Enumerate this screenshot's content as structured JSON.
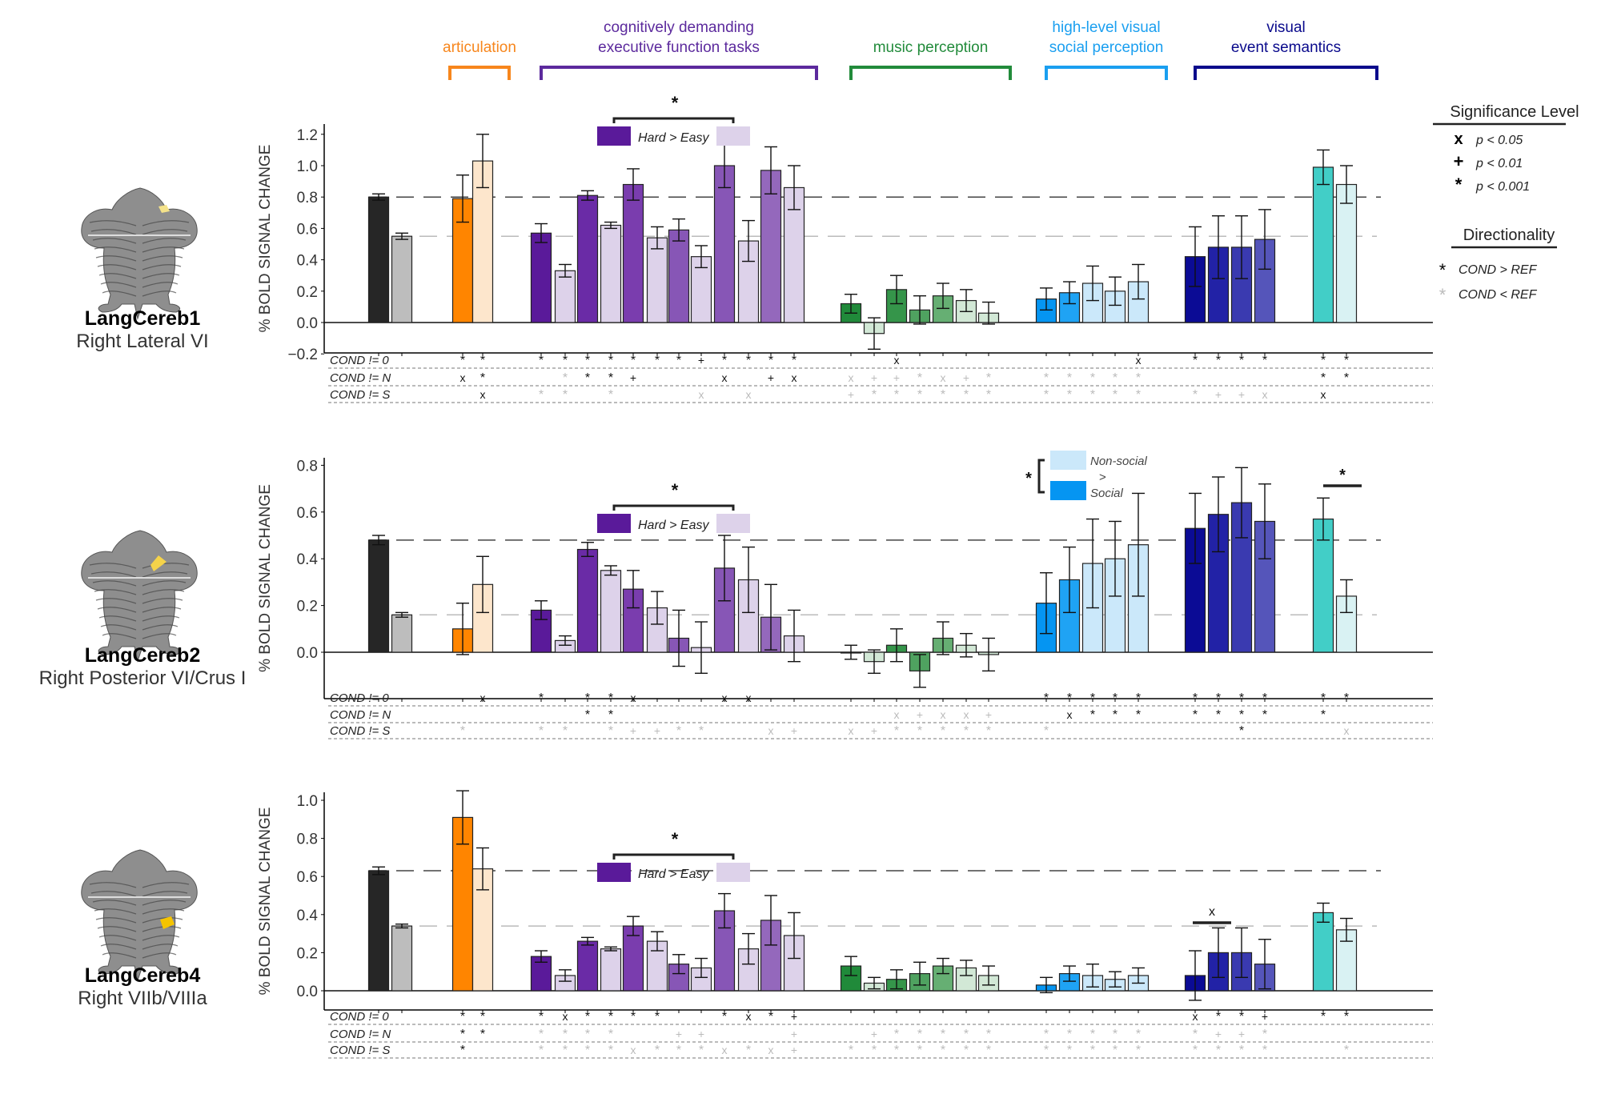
{
  "figure": {
    "ylabel": "% BOLD SIGNAL CHANGE",
    "groups": [
      {
        "id": "articulation",
        "label_lines": [
          "articulation"
        ],
        "color": "#F7861C"
      },
      {
        "id": "exec",
        "label_lines": [
          "cognitively demanding",
          "executive function tasks"
        ],
        "color": "#5C2A9D"
      },
      {
        "id": "music",
        "label_lines": [
          "music perception"
        ],
        "color": "#228B3B"
      },
      {
        "id": "social",
        "label_lines": [
          "high-level visual",
          "social perception"
        ],
        "color": "#1A9FF0"
      },
      {
        "id": "events",
        "label_lines": [
          "visual",
          "event semantics"
        ],
        "color": "#0A0A8C"
      }
    ],
    "legend": {
      "significance_title": "Significance Level",
      "significance_items": [
        {
          "symbol": "x",
          "label": "p < 0.05"
        },
        {
          "symbol": "+",
          "label": "p < 0.01"
        },
        {
          "symbol": "*",
          "label": "p < 0.001"
        }
      ],
      "direction_title": "Directionality",
      "direction_items": [
        {
          "symbol": "*",
          "color": "#000000",
          "label": "COND > REF"
        },
        {
          "symbol": "*",
          "color": "#BBBBBB",
          "label": "COND < REF"
        }
      ]
    },
    "sig_row_labels": [
      "COND != 0",
      "COND != N",
      "COND != S"
    ],
    "hard_easy_label": "Hard > Easy",
    "hard_easy_star": "*",
    "social_legend": {
      "top": "Non-social",
      "mid": ">",
      "bottom": "Social",
      "star": "*"
    }
  },
  "colors": {
    "lang_s": "#262626",
    "lang_n": "#BDBDBD",
    "artic_h": "#FF8500",
    "artic_e": "#FDE6CC",
    "exec_1": "#5A1A9A",
    "exec_2": "#6A2BA6",
    "exec_3": "#7A3DAE",
    "exec_4": "#8756B6",
    "exec_5": "#9468BC",
    "easy": "#DDD2EA",
    "mus_1": "#208A3A",
    "mus_2": "#35954A",
    "mus_3": "#4FA260",
    "mus_4": "#66AF73",
    "mus_light": "#D2E8D6",
    "soc_1": "#0595F2",
    "soc_2": "#1FA3F4",
    "soc_light": "#CBE8FA",
    "ev_1": "#0B0B95",
    "ev_2": "#2222A6",
    "ev_3": "#3A3AB0",
    "ev_4": "#5555BA",
    "teal": "#42CEC7",
    "teal_light": "#D9F2F3"
  },
  "chart_data": [
    {
      "type": "bar",
      "roi": "LangCereb1",
      "region": "Right Lateral VI",
      "ylabel": "% BOLD SIGNAL CHANGE",
      "ylim": [
        -0.25,
        1.25
      ],
      "yticks": [
        "-0.2",
        "0.0",
        "0.2",
        "0.4",
        "0.6",
        "0.8",
        "1.0",
        "1.2"
      ],
      "ref_lines": {
        "S": 0.8,
        "N": 0.55
      },
      "bars": [
        {
          "c": "lang_s",
          "v": 0.8,
          "e": 0.02
        },
        {
          "c": "lang_n",
          "v": 0.55,
          "e": 0.02
        },
        {
          "c": "artic_h",
          "v": 0.79,
          "e": 0.15
        },
        {
          "c": "artic_e",
          "v": 1.03,
          "e": 0.17
        },
        {
          "c": "exec_1",
          "v": 0.57,
          "e": 0.06
        },
        {
          "c": "easy",
          "v": 0.33,
          "e": 0.04
        },
        {
          "c": "exec_2",
          "v": 0.81,
          "e": 0.03
        },
        {
          "c": "easy",
          "v": 0.62,
          "e": 0.02
        },
        {
          "c": "exec_3",
          "v": 0.88,
          "e": 0.1
        },
        {
          "c": "easy",
          "v": 0.54,
          "e": 0.07
        },
        {
          "c": "exec_4",
          "v": 0.59,
          "e": 0.07
        },
        {
          "c": "easy",
          "v": 0.42,
          "e": 0.07
        },
        {
          "c": "exec_4",
          "v": 1.0,
          "e": 0.14
        },
        {
          "c": "easy",
          "v": 0.52,
          "e": 0.13
        },
        {
          "c": "exec_5",
          "v": 0.97,
          "e": 0.15
        },
        {
          "c": "easy",
          "v": 0.86,
          "e": 0.14
        },
        {
          "c": "mus_1",
          "v": 0.12,
          "e": 0.06
        },
        {
          "c": "mus_light",
          "v": -0.07,
          "e": 0.1
        },
        {
          "c": "mus_2",
          "v": 0.21,
          "e": 0.09
        },
        {
          "c": "mus_3",
          "v": 0.08,
          "e": 0.09
        },
        {
          "c": "mus_4",
          "v": 0.17,
          "e": 0.08
        },
        {
          "c": "mus_light",
          "v": 0.14,
          "e": 0.07
        },
        {
          "c": "mus_light",
          "v": 0.06,
          "e": 0.07
        },
        {
          "c": "soc_1",
          "v": 0.15,
          "e": 0.07
        },
        {
          "c": "soc_2",
          "v": 0.19,
          "e": 0.07
        },
        {
          "c": "soc_light",
          "v": 0.25,
          "e": 0.11
        },
        {
          "c": "soc_light",
          "v": 0.2,
          "e": 0.09
        },
        {
          "c": "soc_light",
          "v": 0.26,
          "e": 0.11
        },
        {
          "c": "ev_1",
          "v": 0.42,
          "e": 0.19
        },
        {
          "c": "ev_2",
          "v": 0.48,
          "e": 0.2
        },
        {
          "c": "ev_3",
          "v": 0.48,
          "e": 0.2
        },
        {
          "c": "ev_4",
          "v": 0.53,
          "e": 0.19
        },
        {
          "c": "teal",
          "v": 0.99,
          "e": 0.11
        },
        {
          "c": "teal_light",
          "v": 0.88,
          "e": 0.12
        }
      ],
      "sig": [
        [
          "",
          "",
          "*",
          "*",
          "*",
          "*",
          "*",
          "*",
          "*",
          "*",
          "*",
          "+",
          "*",
          "*",
          "*",
          "*",
          "",
          "",
          "x",
          "",
          "",
          "",
          "",
          "",
          "",
          "",
          "",
          "x",
          "*",
          "*",
          "*",
          "*",
          "*",
          "*"
        ],
        [
          "",
          "",
          "x",
          "*",
          "",
          "g*",
          "*",
          "*",
          "+",
          "",
          "",
          "",
          "x",
          "",
          "+",
          "x",
          "gx",
          "g+",
          "g+",
          "g*",
          "gx",
          "g+",
          "g*",
          "g*",
          "g*",
          "g*",
          "g*",
          "g*",
          "",
          "",
          "",
          "",
          "*",
          "*"
        ],
        [
          "",
          "",
          "",
          "x",
          "g*",
          "g*",
          "",
          "g*",
          "",
          "",
          "",
          "gx",
          "",
          "gx",
          "",
          "",
          "g+",
          "g*",
          "g*",
          "g*",
          "g*",
          "g*",
          "g*",
          "g*",
          "g*",
          "g*",
          "g*",
          "g*",
          "g*",
          "g+",
          "g+",
          "gx",
          "x",
          ""
        ]
      ],
      "hard_easy": true,
      "social_contrast": false,
      "teal_contrast": null,
      "event_contrast": null
    },
    {
      "type": "bar",
      "roi": "LangCereb2",
      "region": "Right Posterior VI/Crus I",
      "ylabel": "% BOLD SIGNAL CHANGE",
      "ylim": [
        -0.2,
        0.82
      ],
      "yticks": [
        "0.0",
        "0.2",
        "0.4",
        "0.6",
        "0.8"
      ],
      "ref_lines": {
        "S": 0.48,
        "N": 0.16
      },
      "bars": [
        {
          "c": "lang_s",
          "v": 0.48,
          "e": 0.02
        },
        {
          "c": "lang_n",
          "v": 0.16,
          "e": 0.01
        },
        {
          "c": "artic_h",
          "v": 0.1,
          "e": 0.11
        },
        {
          "c": "artic_e",
          "v": 0.29,
          "e": 0.12
        },
        {
          "c": "exec_1",
          "v": 0.18,
          "e": 0.04
        },
        {
          "c": "easy",
          "v": 0.05,
          "e": 0.02
        },
        {
          "c": "exec_2",
          "v": 0.44,
          "e": 0.03
        },
        {
          "c": "easy",
          "v": 0.35,
          "e": 0.02
        },
        {
          "c": "exec_3",
          "v": 0.27,
          "e": 0.08
        },
        {
          "c": "easy",
          "v": 0.19,
          "e": 0.07
        },
        {
          "c": "exec_4",
          "v": 0.06,
          "e": 0.12
        },
        {
          "c": "easy",
          "v": 0.02,
          "e": 0.11
        },
        {
          "c": "exec_4",
          "v": 0.36,
          "e": 0.14
        },
        {
          "c": "easy",
          "v": 0.31,
          "e": 0.14
        },
        {
          "c": "exec_5",
          "v": 0.15,
          "e": 0.14
        },
        {
          "c": "easy",
          "v": 0.07,
          "e": 0.11
        },
        {
          "c": "mus_1",
          "v": 0.0,
          "e": 0.03
        },
        {
          "c": "mus_light",
          "v": -0.04,
          "e": 0.05
        },
        {
          "c": "mus_2",
          "v": 0.03,
          "e": 0.07
        },
        {
          "c": "mus_3",
          "v": -0.08,
          "e": 0.07
        },
        {
          "c": "mus_4",
          "v": 0.06,
          "e": 0.07
        },
        {
          "c": "mus_light",
          "v": 0.03,
          "e": 0.05
        },
        {
          "c": "mus_light",
          "v": -0.01,
          "e": 0.07
        },
        {
          "c": "soc_1",
          "v": 0.21,
          "e": 0.13
        },
        {
          "c": "soc_2",
          "v": 0.31,
          "e": 0.14
        },
        {
          "c": "soc_light",
          "v": 0.38,
          "e": 0.19
        },
        {
          "c": "soc_light",
          "v": 0.4,
          "e": 0.16
        },
        {
          "c": "soc_light",
          "v": 0.46,
          "e": 0.22
        },
        {
          "c": "ev_1",
          "v": 0.53,
          "e": 0.15
        },
        {
          "c": "ev_2",
          "v": 0.59,
          "e": 0.16
        },
        {
          "c": "ev_3",
          "v": 0.64,
          "e": 0.15
        },
        {
          "c": "ev_4",
          "v": 0.56,
          "e": 0.16
        },
        {
          "c": "teal",
          "v": 0.57,
          "e": 0.09
        },
        {
          "c": "teal_light",
          "v": 0.24,
          "e": 0.07
        }
      ],
      "sig": [
        [
          "",
          "",
          "",
          "x",
          "*",
          "",
          "*",
          "*",
          "x",
          "",
          "",
          "",
          "x",
          "x",
          "",
          "",
          "",
          "",
          "",
          "",
          "",
          "",
          "",
          "*",
          "*",
          "*",
          "*",
          "*",
          "*",
          "*",
          "*",
          "*",
          "*",
          "*"
        ],
        [
          "",
          "",
          "",
          "",
          "",
          "",
          "*",
          "*",
          "",
          "",
          "",
          "",
          "",
          "",
          "",
          "",
          "",
          "",
          "gx",
          "g+",
          "gx",
          "gx",
          "g+",
          "",
          "x",
          "*",
          "*",
          "*",
          "*",
          "*",
          "*",
          "*",
          "*",
          ""
        ],
        [
          "",
          "",
          "g*",
          "",
          "g*",
          "g*",
          "",
          "g*",
          "g+",
          "g+",
          "g*",
          "g*",
          "",
          "",
          "gx",
          "g+",
          "gx",
          "g+",
          "g*",
          "g*",
          "g*",
          "g*",
          "g*",
          "g*",
          "",
          "",
          "",
          "",
          "",
          "",
          "*",
          "",
          "",
          "gx"
        ]
      ],
      "hard_easy": true,
      "social_contrast": true,
      "teal_contrast": "*",
      "event_contrast": null
    },
    {
      "type": "bar",
      "roi": "LangCereb4",
      "region": "Right VIIb/VIIIa",
      "ylabel": "% BOLD SIGNAL CHANGE",
      "ylim": [
        -0.1,
        1.1
      ],
      "yticks": [
        "0.0",
        "0.2",
        "0.4",
        "0.6",
        "0.8",
        "1.0"
      ],
      "ref_lines": {
        "S": 0.63,
        "N": 0.34
      },
      "bars": [
        {
          "c": "lang_s",
          "v": 0.63,
          "e": 0.02
        },
        {
          "c": "lang_n",
          "v": 0.34,
          "e": 0.01
        },
        {
          "c": "artic_h",
          "v": 0.91,
          "e": 0.14
        },
        {
          "c": "artic_e",
          "v": 0.64,
          "e": 0.11
        },
        {
          "c": "exec_1",
          "v": 0.18,
          "e": 0.03
        },
        {
          "c": "easy",
          "v": 0.08,
          "e": 0.03
        },
        {
          "c": "exec_2",
          "v": 0.26,
          "e": 0.02
        },
        {
          "c": "easy",
          "v": 0.22,
          "e": 0.01
        },
        {
          "c": "exec_3",
          "v": 0.34,
          "e": 0.05
        },
        {
          "c": "easy",
          "v": 0.26,
          "e": 0.05
        },
        {
          "c": "exec_4",
          "v": 0.14,
          "e": 0.05
        },
        {
          "c": "easy",
          "v": 0.12,
          "e": 0.05
        },
        {
          "c": "exec_4",
          "v": 0.42,
          "e": 0.09
        },
        {
          "c": "easy",
          "v": 0.22,
          "e": 0.08
        },
        {
          "c": "exec_5",
          "v": 0.37,
          "e": 0.13
        },
        {
          "c": "easy",
          "v": 0.29,
          "e": 0.12
        },
        {
          "c": "mus_1",
          "v": 0.13,
          "e": 0.05
        },
        {
          "c": "mus_light",
          "v": 0.04,
          "e": 0.03
        },
        {
          "c": "mus_2",
          "v": 0.06,
          "e": 0.05
        },
        {
          "c": "mus_3",
          "v": 0.09,
          "e": 0.06
        },
        {
          "c": "mus_4",
          "v": 0.13,
          "e": 0.04
        },
        {
          "c": "mus_light",
          "v": 0.12,
          "e": 0.04
        },
        {
          "c": "mus_light",
          "v": 0.08,
          "e": 0.05
        },
        {
          "c": "soc_1",
          "v": 0.03,
          "e": 0.04
        },
        {
          "c": "soc_2",
          "v": 0.09,
          "e": 0.04
        },
        {
          "c": "soc_light",
          "v": 0.08,
          "e": 0.06
        },
        {
          "c": "soc_light",
          "v": 0.06,
          "e": 0.04
        },
        {
          "c": "soc_light",
          "v": 0.08,
          "e": 0.04
        },
        {
          "c": "ev_1",
          "v": 0.08,
          "e": 0.13
        },
        {
          "c": "ev_2",
          "v": 0.2,
          "e": 0.13
        },
        {
          "c": "ev_3",
          "v": 0.2,
          "e": 0.13
        },
        {
          "c": "ev_4",
          "v": 0.14,
          "e": 0.13
        },
        {
          "c": "teal",
          "v": 0.41,
          "e": 0.05
        },
        {
          "c": "teal_light",
          "v": 0.32,
          "e": 0.06
        }
      ],
      "sig": [
        [
          "",
          "",
          "*",
          "*",
          "*",
          "x",
          "*",
          "*",
          "*",
          "*",
          "",
          "",
          "*",
          "x",
          "*",
          "+",
          "",
          "",
          "",
          "",
          "",
          "",
          "",
          "",
          "",
          "",
          "",
          "",
          "x",
          "*",
          "*",
          "+",
          "*",
          "*"
        ],
        [
          "",
          "",
          "*",
          "*",
          "g*",
          "g*",
          "g*",
          "g*",
          "",
          "",
          "g+",
          "g+",
          "",
          "",
          "",
          "g+",
          "",
          "g+",
          "g*",
          "g*",
          "g*",
          "g*",
          "g*",
          "g*",
          "g*",
          "g*",
          "g*",
          "g*",
          "g*",
          "g+",
          "g+",
          "g*",
          "",
          ""
        ],
        [
          "",
          "",
          "*",
          "",
          "g*",
          "g*",
          "g*",
          "g*",
          "gx",
          "g*",
          "g*",
          "g*",
          "gx",
          "g*",
          "gx",
          "g+",
          "g*",
          "g*",
          "g*",
          "g*",
          "g*",
          "g*",
          "g*",
          "g*",
          "g*",
          "g*",
          "g*",
          "g*",
          "g*",
          "g*",
          "g*",
          "g*",
          "",
          "g*"
        ]
      ],
      "hard_easy": true,
      "social_contrast": false,
      "teal_contrast": null,
      "event_contrast": "x"
    }
  ]
}
